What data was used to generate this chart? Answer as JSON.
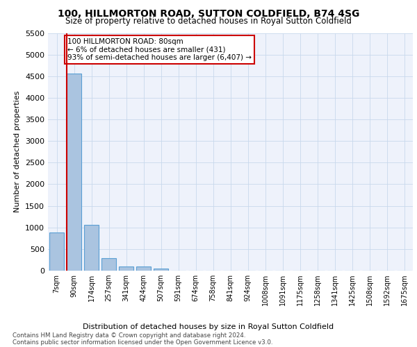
{
  "title1": "100, HILLMORTON ROAD, SUTTON COLDFIELD, B74 4SG",
  "title2": "Size of property relative to detached houses in Royal Sutton Coldfield",
  "xlabel": "Distribution of detached houses by size in Royal Sutton Coldfield",
  "ylabel": "Number of detached properties",
  "footnote1": "Contains HM Land Registry data © Crown copyright and database right 2024.",
  "footnote2": "Contains public sector information licensed under the Open Government Licence v3.0.",
  "annotation_line1": "100 HILLMORTON ROAD: 80sqm",
  "annotation_line2": "← 6% of detached houses are smaller (431)",
  "annotation_line3": "93% of semi-detached houses are larger (6,407) →",
  "bar_categories": [
    "7sqm",
    "90sqm",
    "174sqm",
    "257sqm",
    "341sqm",
    "424sqm",
    "507sqm",
    "591sqm",
    "674sqm",
    "758sqm",
    "841sqm",
    "924sqm",
    "1008sqm",
    "1091sqm",
    "1175sqm",
    "1258sqm",
    "1341sqm",
    "1425sqm",
    "1508sqm",
    "1592sqm",
    "1675sqm"
  ],
  "bar_values": [
    880,
    4560,
    1060,
    290,
    90,
    90,
    50,
    0,
    0,
    0,
    0,
    0,
    0,
    0,
    0,
    0,
    0,
    0,
    0,
    0,
    0
  ],
  "bar_color": "#aac4e0",
  "bar_edge_color": "#5a9fd4",
  "highlight_color": "#cc0000",
  "ylim": [
    0,
    5500
  ],
  "yticks": [
    0,
    500,
    1000,
    1500,
    2000,
    2500,
    3000,
    3500,
    4000,
    4500,
    5000,
    5500
  ],
  "annotation_box_color": "#cc0000",
  "plot_bg_color": "#eef2fb"
}
